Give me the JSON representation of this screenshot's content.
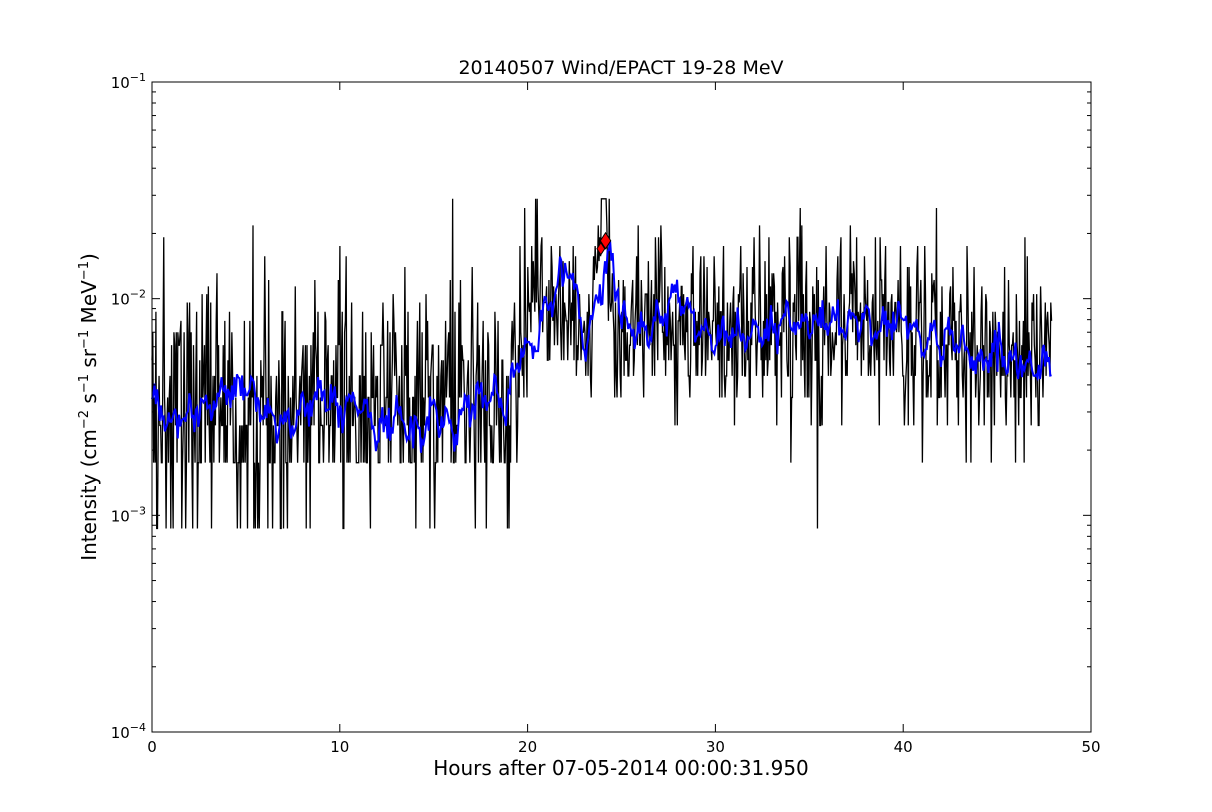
{
  "chart_data": {
    "type": "line",
    "title": "20140507 Wind/EPACT 19-28 MeV",
    "xlabel": "Hours after 07-05-2014 00:00:31.950",
    "ylabel": {
      "prefix": "Intensity (cm",
      "exp1": "−2",
      "mid1": " s",
      "exp2": "−1",
      "mid2": " sr",
      "exp3": "−1",
      "mid3": " MeV",
      "exp4": "−1",
      "suffix": ")"
    },
    "xlim": [
      0,
      50
    ],
    "ylim": [
      0.0001,
      0.1
    ],
    "yscale": "log",
    "grid": false,
    "x_ticks": [
      0,
      10,
      20,
      30,
      40,
      50
    ],
    "x_tick_labels": [
      "0",
      "10",
      "20",
      "30",
      "40",
      "50"
    ],
    "y_ticks": [
      0.1,
      0.01,
      0.001,
      0.0001
    ],
    "y_tick_labels": [
      {
        "base": "10",
        "exp": "−1"
      },
      {
        "base": "10",
        "exp": "−2"
      },
      {
        "base": "10",
        "exp": "−3"
      },
      {
        "base": "10",
        "exp": "−4"
      }
    ],
    "colors": {
      "raw": "#000000",
      "smoothed": "#0000ff",
      "marker": "#ff0000"
    },
    "raw_levels": [
      0.00087,
      0.00175,
      0.0026,
      0.0035,
      0.0044,
      0.0052,
      0.0061,
      0.007,
      0.0079,
      0.0087,
      0.0096,
      0.0105,
      0.0114,
      0.0122,
      0.0131,
      0.014,
      0.0149,
      0.0157,
      0.0175,
      0.0192,
      0.0218,
      0.0262,
      0.0289
    ],
    "series": [
      {
        "role": "raw",
        "x_start": 0.0,
        "x_end": 47.9,
        "segments": [
          {
            "x": [
              0,
              19.2
            ],
            "median": 0.0031,
            "spread": 0.33
          },
          {
            "x": [
              19.2,
              20.0
            ],
            "median": 0.0058,
            "spread": 0.22
          },
          {
            "x": [
              20.0,
              22.5
            ],
            "median": 0.01,
            "spread": 0.17
          },
          {
            "x": [
              22.5,
              23.5
            ],
            "median": 0.0075,
            "spread": 0.2
          },
          {
            "x": [
              23.5,
              24.5
            ],
            "median": 0.015,
            "spread": 0.16
          },
          {
            "x": [
              24.5,
              28.0
            ],
            "median": 0.0072,
            "spread": 0.2
          },
          {
            "x": [
              28.0,
              40.0
            ],
            "median": 0.0074,
            "spread": 0.21
          },
          {
            "x": [
              40.0,
              47.9
            ],
            "median": 0.0057,
            "spread": 0.25
          }
        ]
      },
      {
        "role": "smoothed",
        "x": [
          0,
          1,
          2,
          3,
          4,
          5,
          6,
          7,
          8,
          9,
          10,
          11,
          12,
          13,
          14,
          15,
          16,
          17,
          18,
          19,
          19.5,
          20,
          20.5,
          21,
          21.5,
          22,
          22.5,
          23,
          23.5,
          24,
          24.5,
          25,
          26,
          27,
          28,
          29,
          30,
          31,
          32,
          33,
          34,
          35,
          36,
          37,
          38,
          39,
          40,
          41,
          42,
          43,
          44,
          45,
          46,
          47,
          47.9
        ],
        "values": [
          0.0033,
          0.0028,
          0.003,
          0.0032,
          0.0038,
          0.004,
          0.003,
          0.0026,
          0.0031,
          0.0036,
          0.0031,
          0.0033,
          0.0025,
          0.0029,
          0.0024,
          0.003,
          0.0025,
          0.0034,
          0.0036,
          0.0033,
          0.0055,
          0.0058,
          0.0063,
          0.0095,
          0.011,
          0.014,
          0.012,
          0.006,
          0.008,
          0.013,
          0.015,
          0.008,
          0.0068,
          0.008,
          0.011,
          0.0074,
          0.0065,
          0.007,
          0.0068,
          0.0075,
          0.008,
          0.0073,
          0.0082,
          0.0078,
          0.008,
          0.0075,
          0.008,
          0.0064,
          0.0066,
          0.006,
          0.0052,
          0.0055,
          0.005,
          0.0048,
          0.0053
        ]
      }
    ],
    "markers": [
      {
        "x": 23.9,
        "y": 0.017
      },
      {
        "x": 24.15,
        "y": 0.0185
      }
    ]
  }
}
